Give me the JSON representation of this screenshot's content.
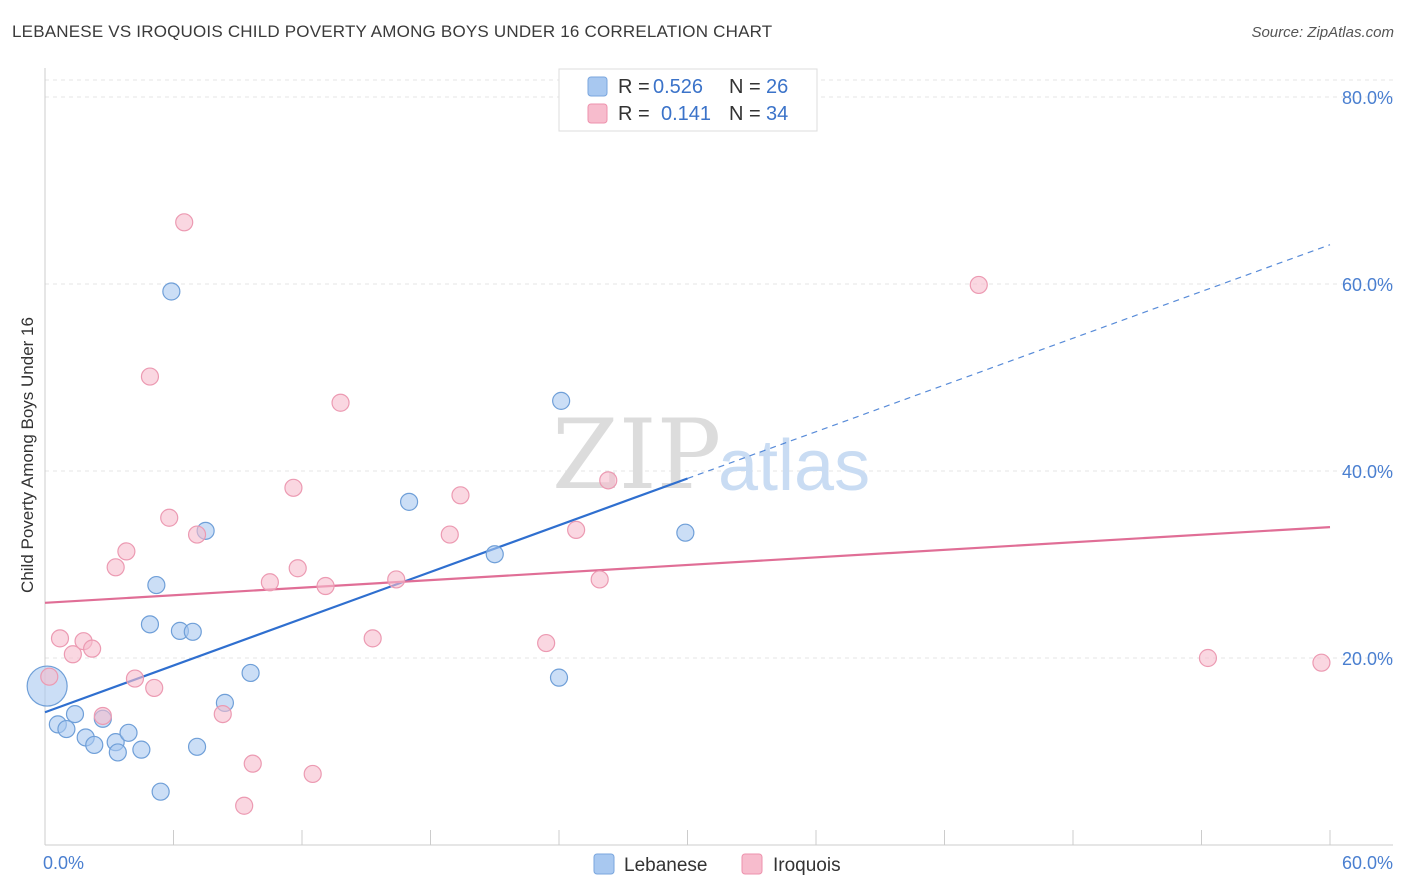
{
  "title": "LEBANESE VS IROQUOIS CHILD POVERTY AMONG BOYS UNDER 16 CORRELATION CHART",
  "source": "Source: ZipAtlas.com",
  "watermark": {
    "zip": "ZIP",
    "atlas": "atlas"
  },
  "legend": {
    "rows": [
      {
        "r_label": "R =",
        "r_value": "0.526",
        "n_label": "N =",
        "n_value": "26",
        "color": "#a8c8f0",
        "stroke": "#7aa6de"
      },
      {
        "r_label": "R =",
        "r_value": "0.141",
        "n_label": "N =",
        "n_value": "34",
        "color": "#f7bccd",
        "stroke": "#ee92ad"
      }
    ]
  },
  "chart_data": {
    "type": "scatter",
    "title": "LEBANESE VS IROQUOIS CHILD POVERTY AMONG BOYS UNDER 16 CORRELATION CHART",
    "xlabel": "",
    "ylabel": "Child Poverty Among Boys Under 16",
    "xlim": [
      0,
      60
    ],
    "ylim": [
      0,
      80
    ],
    "x_ticks": [
      "0.0%",
      "60.0%"
    ],
    "y_ticks": [
      {
        "value": 20,
        "label": "20.0%"
      },
      {
        "value": 40,
        "label": "40.0%"
      },
      {
        "value": 60,
        "label": "60.0%"
      },
      {
        "value": 80,
        "label": "80.0%"
      }
    ],
    "grid": true,
    "legend_position": "top-center",
    "series": [
      {
        "name": "Lebanese",
        "color": "#a8c8f0",
        "stroke": "#6f9fd8",
        "line_color": "#2f6fcf",
        "trend": {
          "x0": 0,
          "y0": 14.2,
          "x1": 30,
          "y1": 39.2,
          "dashed_to_x": 60,
          "dashed_to_y": 64.2
        },
        "points": [
          {
            "x": 0.1,
            "y": 17.0,
            "big": true
          },
          {
            "x": 0.6,
            "y": 12.9
          },
          {
            "x": 1.0,
            "y": 12.4
          },
          {
            "x": 1.4,
            "y": 14.0
          },
          {
            "x": 1.9,
            "y": 11.5
          },
          {
            "x": 2.3,
            "y": 10.7
          },
          {
            "x": 2.7,
            "y": 13.5
          },
          {
            "x": 3.3,
            "y": 11.0
          },
          {
            "x": 3.4,
            "y": 9.9
          },
          {
            "x": 3.9,
            "y": 12.0
          },
          {
            "x": 4.5,
            "y": 10.2
          },
          {
            "x": 4.9,
            "y": 23.6
          },
          {
            "x": 5.2,
            "y": 27.8
          },
          {
            "x": 5.4,
            "y": 5.7
          },
          {
            "x": 5.9,
            "y": 59.2
          },
          {
            "x": 6.3,
            "y": 22.9
          },
          {
            "x": 6.9,
            "y": 22.8
          },
          {
            "x": 7.1,
            "y": 10.5
          },
          {
            "x": 7.5,
            "y": 33.6
          },
          {
            "x": 8.4,
            "y": 15.2
          },
          {
            "x": 9.6,
            "y": 18.4
          },
          {
            "x": 17.0,
            "y": 36.7
          },
          {
            "x": 21.0,
            "y": 31.1
          },
          {
            "x": 24.0,
            "y": 17.9
          },
          {
            "x": 24.1,
            "y": 47.5
          },
          {
            "x": 29.9,
            "y": 33.4
          }
        ]
      },
      {
        "name": "Iroquois",
        "color": "#f7bccd",
        "stroke": "#ec9ab2",
        "line_color": "#e06e96",
        "trend": {
          "x0": 0,
          "y0": 25.9,
          "x1": 60,
          "y1": 34.0
        },
        "points": [
          {
            "x": 0.2,
            "y": 18.0
          },
          {
            "x": 0.7,
            "y": 22.1
          },
          {
            "x": 1.3,
            "y": 20.4
          },
          {
            "x": 1.8,
            "y": 21.8
          },
          {
            "x": 2.2,
            "y": 21.0
          },
          {
            "x": 2.7,
            "y": 13.8
          },
          {
            "x": 3.3,
            "y": 29.7
          },
          {
            "x": 3.8,
            "y": 31.4
          },
          {
            "x": 4.2,
            "y": 17.8
          },
          {
            "x": 4.9,
            "y": 50.1
          },
          {
            "x": 5.1,
            "y": 16.8
          },
          {
            "x": 5.8,
            "y": 35.0
          },
          {
            "x": 6.5,
            "y": 66.6
          },
          {
            "x": 7.1,
            "y": 33.2
          },
          {
            "x": 8.3,
            "y": 14.0
          },
          {
            "x": 9.3,
            "y": 4.2
          },
          {
            "x": 9.7,
            "y": 8.7
          },
          {
            "x": 10.5,
            "y": 28.1
          },
          {
            "x": 11.6,
            "y": 38.2
          },
          {
            "x": 11.8,
            "y": 29.6
          },
          {
            "x": 12.5,
            "y": 7.6
          },
          {
            "x": 13.1,
            "y": 27.7
          },
          {
            "x": 13.8,
            "y": 47.3
          },
          {
            "x": 15.3,
            "y": 22.1
          },
          {
            "x": 16.4,
            "y": 28.4
          },
          {
            "x": 18.9,
            "y": 33.2
          },
          {
            "x": 19.4,
            "y": 37.4
          },
          {
            "x": 23.4,
            "y": 21.6
          },
          {
            "x": 24.8,
            "y": 33.7
          },
          {
            "x": 25.9,
            "y": 28.4
          },
          {
            "x": 26.3,
            "y": 39.0
          },
          {
            "x": 43.6,
            "y": 59.9
          },
          {
            "x": 54.3,
            "y": 20.0
          },
          {
            "x": 59.6,
            "y": 19.5
          }
        ]
      }
    ]
  }
}
